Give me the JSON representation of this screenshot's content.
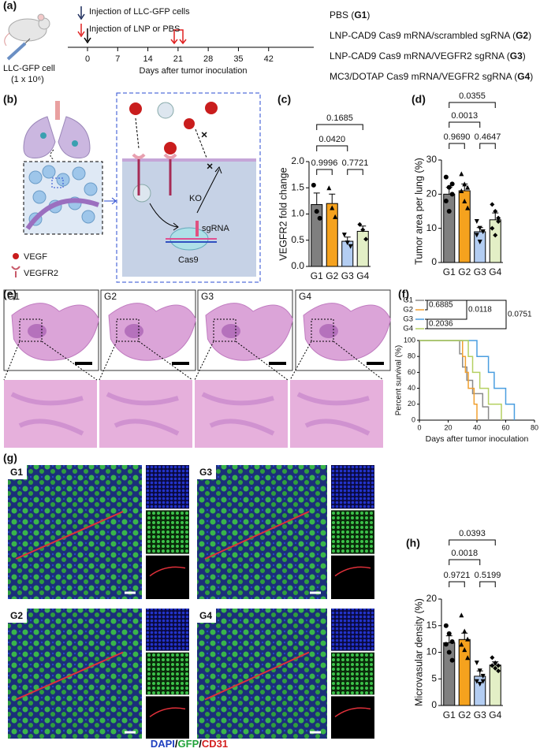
{
  "figure": {
    "panel_labels": [
      "(a)",
      "(b)",
      "(c)",
      "(d)",
      "(e)",
      "(f)",
      "(g)",
      "(h)"
    ],
    "timeline": {
      "legend": [
        "Injection of LLC-GFP cells",
        "Injection of LNP or PBS"
      ],
      "cell_label": "LLC-GFP cell",
      "cell_dose": "(1 x 10⁶)",
      "ticks": [
        0,
        7,
        14,
        21,
        28,
        35,
        42
      ],
      "xlabel": "Days after tumor inoculation",
      "groups": [
        [
          "PBS (",
          "G1",
          ")"
        ],
        [
          "LNP-CAD9 Cas9 mRNA/scrambled sgRNA (",
          "G2",
          ")"
        ],
        [
          "LNP-CAD9 Cas9 mRNA/VEGFR2 sgRNA (",
          "G3",
          ")"
        ],
        [
          "MC3/DOTAP Cas9 mRNA/VEGFR2 sgRNA (",
          "G4",
          ")"
        ]
      ]
    },
    "diagram": {
      "legend": [
        "VEGF",
        "VEGFR2"
      ],
      "ko": "KO",
      "sgrna": "sgRNA",
      "cas9": "Cas9"
    },
    "histology": {
      "groups": [
        "G1",
        "G2",
        "G3",
        "G4"
      ]
    },
    "fluorescence": {
      "groups": [
        "G1",
        "G3",
        "G2",
        "G4"
      ],
      "stain": [
        "DAPI",
        "/",
        "GFP",
        "/",
        "CD31"
      ]
    }
  },
  "chart_data": [
    {
      "type": "bar",
      "ylabel": "VEGFR2 fold change",
      "categories": [
        "G1",
        "G2",
        "G3",
        "G4"
      ],
      "values": [
        1.18,
        1.2,
        0.48,
        0.67
      ],
      "errors": [
        0.22,
        0.18,
        0.08,
        0.1
      ],
      "points": [
        [
          1.55,
          1.05,
          0.92
        ],
        [
          1.5,
          1.12,
          0.95
        ],
        [
          0.6,
          0.45,
          0.38
        ],
        [
          0.8,
          0.7,
          0.52
        ]
      ],
      "colors": [
        "#7f7f7f",
        "#f5a21e",
        "#b3cdf2",
        "#e3efc6"
      ],
      "ylim": [
        0,
        2
      ],
      "yticks": [
        {
          "value": 0,
          "label": "0.0"
        },
        0.5,
        {
          "value": 1,
          "label": "1.0"
        },
        1.5,
        {
          "value": 2,
          "label": "2.0"
        }
      ],
      "comparisons": [
        {
          "between": [
            "G1",
            "G2"
          ],
          "p": "0.9996"
        },
        {
          "between": [
            "G3",
            "G4"
          ],
          "p": "0.7721"
        },
        {
          "between": [
            "G1",
            "G3"
          ],
          "p": "0.0420"
        },
        {
          "between": [
            "G1",
            "G4"
          ],
          "p": "0.1685"
        }
      ]
    },
    {
      "type": "bar",
      "ylabel": "Tumor area per lung (%)",
      "categories": [
        "G1",
        "G2",
        "G3",
        "G4"
      ],
      "values": [
        20,
        21,
        9,
        12.5
      ],
      "errors": [
        2,
        2,
        1.2,
        2
      ],
      "points": [
        [
          25,
          22,
          20,
          18,
          15,
          23
        ],
        [
          26,
          23,
          22,
          21,
          18,
          16
        ],
        [
          12,
          10,
          9,
          8,
          6,
          9
        ],
        [
          17,
          15,
          12,
          10,
          8,
          13
        ]
      ],
      "colors": [
        "#7f7f7f",
        "#f5a21e",
        "#b3cdf2",
        "#e3efc6"
      ],
      "ylim": [
        0,
        30
      ],
      "yticks": [
        0,
        10,
        20,
        30
      ],
      "comparisons": [
        {
          "between": [
            "G1",
            "G2"
          ],
          "p": "0.9690"
        },
        {
          "between": [
            "G3",
            "G4"
          ],
          "p": "0.4647"
        },
        {
          "between": [
            "G1",
            "G3"
          ],
          "p": "0.0013"
        },
        {
          "between": [
            "G1",
            "G4"
          ],
          "p": "0.0355"
        }
      ]
    },
    {
      "type": "line",
      "ylabel": "Percent survival (%)",
      "xlabel": "Days after tumor inoculation",
      "xlim": [
        0,
        80
      ],
      "xticks": [
        0,
        20,
        40,
        60,
        80
      ],
      "ylim": [
        0,
        100
      ],
      "yticks": [
        0,
        20,
        40,
        60,
        80,
        100
      ],
      "series": [
        {
          "name": "G1",
          "color": "#8a8a8a",
          "x": [
            0,
            28,
            30,
            33,
            37,
            44,
            48
          ],
          "values": [
            100,
            83.3,
            66.7,
            50,
            33.3,
            16.7,
            0
          ]
        },
        {
          "name": "G2",
          "color": "#f0a030",
          "x": [
            0,
            30,
            32,
            34,
            38,
            40
          ],
          "values": [
            100,
            80,
            60,
            40,
            20,
            0
          ]
        },
        {
          "name": "G3",
          "color": "#4a9ee0",
          "x": [
            0,
            40,
            48,
            52,
            60,
            66
          ],
          "values": [
            100,
            80,
            60,
            40,
            20,
            0
          ]
        },
        {
          "name": "G4",
          "color": "#b5d062",
          "x": [
            0,
            34,
            37,
            42,
            48,
            57
          ],
          "values": [
            100,
            80,
            60,
            40,
            20,
            0
          ]
        }
      ],
      "comparisons": [
        {
          "between": [
            "G1",
            "G2"
          ],
          "p": "0.6885"
        },
        {
          "between": [
            "G1",
            "G3"
          ],
          "p": "0.0118"
        },
        {
          "between": [
            "G1",
            "G4"
          ],
          "p": "0.0751"
        },
        {
          "between": [
            "G3",
            "G4"
          ],
          "p": "0.2036"
        }
      ]
    },
    {
      "type": "bar",
      "ylabel": "Microvasular density (%)",
      "categories": [
        "G1",
        "G2",
        "G3",
        "G4"
      ],
      "values": [
        11.8,
        12.4,
        5.5,
        7.6
      ],
      "errors": [
        1.3,
        1.2,
        1.0,
        0.6
      ],
      "points": [
        [
          15,
          13.5,
          12,
          11.5,
          10,
          8.5
        ],
        [
          17,
          14,
          12.5,
          11.5,
          10.5,
          9
        ],
        [
          8,
          6.5,
          5.5,
          4.5,
          4,
          4.5
        ],
        [
          9,
          8,
          7.5,
          7.5,
          7,
          6.5
        ]
      ],
      "colors": [
        "#7f7f7f",
        "#f5a21e",
        "#b3cdf2",
        "#e3efc6"
      ],
      "ylim": [
        0,
        20
      ],
      "yticks": [
        0,
        5,
        10,
        15,
        20
      ],
      "comparisons": [
        {
          "between": [
            "G1",
            "G2"
          ],
          "p": "0.9721"
        },
        {
          "between": [
            "G3",
            "G4"
          ],
          "p": "0.5199"
        },
        {
          "between": [
            "G1",
            "G3"
          ],
          "p": "0.0018"
        },
        {
          "between": [
            "G1",
            "G4"
          ],
          "p": "0.0393"
        }
      ]
    }
  ]
}
